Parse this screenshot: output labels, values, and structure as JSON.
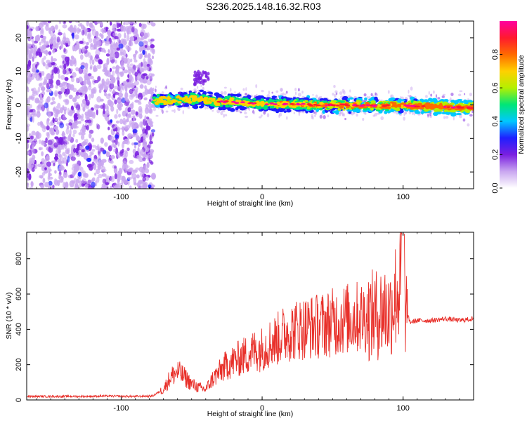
{
  "title": "S236.2025.148.16.32.R03",
  "chart_data": [
    {
      "type": "heatmap",
      "xlabel": "Height of straight line (km)",
      "ylabel": "Frequency (Hz)",
      "xlim": [
        -167,
        150
      ],
      "ylim": [
        -25,
        25
      ],
      "x_ticks": [
        -100,
        0,
        100
      ],
      "y_ticks": [
        -20,
        -10,
        0,
        10,
        20
      ],
      "colorbar": {
        "label": "Normalized spectral amplitude",
        "range": [
          0,
          1
        ],
        "ticks": [
          0.0,
          0.2,
          0.4,
          0.6,
          0.8
        ],
        "tick_labels": [
          "0.0",
          "0.2",
          "0.4",
          "0.6",
          "0.8"
        ],
        "colormap": [
          "#ffffff",
          "#c9a6f0",
          "#7a1fe0",
          "#1f1fff",
          "#00c8ff",
          "#00e676",
          "#b4f000",
          "#ffd000",
          "#ff6a00",
          "#ff1a2e",
          "#ff00a0"
        ]
      },
      "signal_band": {
        "x": [
          -76,
          -60,
          -50,
          -40,
          -30,
          -20,
          -10,
          0,
          20,
          40,
          60,
          80,
          100,
          120,
          150
        ],
        "center_frequency": [
          1.2,
          1.5,
          1.8,
          1.5,
          1.0,
          0.8,
          0.5,
          0.3,
          0.2,
          0.0,
          0.0,
          -0.2,
          -0.2,
          -0.5,
          -0.8
        ]
      }
    },
    {
      "type": "line",
      "xlabel": "Height of straight line (km)",
      "ylabel": "SNR (10 * v/v)",
      "xlim": [
        -167,
        150
      ],
      "ylim": [
        0,
        950
      ],
      "x_ticks": [
        -100,
        0,
        100
      ],
      "y_ticks": [
        0,
        200,
        400,
        600,
        800
      ],
      "color": "#e8302a",
      "series": [
        {
          "x": [
            -167,
            -150,
            -130,
            -110,
            -90,
            -78,
            -70,
            -65,
            -60,
            -55,
            -50,
            -45,
            -40,
            -35,
            -30,
            -25,
            -20,
            -15,
            -10,
            -5,
            0,
            5,
            10,
            15,
            20,
            25,
            30,
            40,
            50,
            60,
            70,
            80,
            85,
            88,
            90,
            92,
            95,
            98,
            100,
            102,
            105,
            110,
            120,
            130,
            140,
            150
          ],
          "values": [
            20,
            20,
            20,
            22,
            20,
            22,
            60,
            130,
            160,
            130,
            90,
            70,
            60,
            120,
            160,
            200,
            220,
            240,
            260,
            280,
            290,
            320,
            340,
            370,
            390,
            400,
            410,
            420,
            440,
            460,
            470,
            480,
            500,
            520,
            470,
            540,
            600,
            650,
            700,
            500,
            440,
            450,
            450,
            460,
            450,
            460
          ]
        }
      ]
    }
  ]
}
